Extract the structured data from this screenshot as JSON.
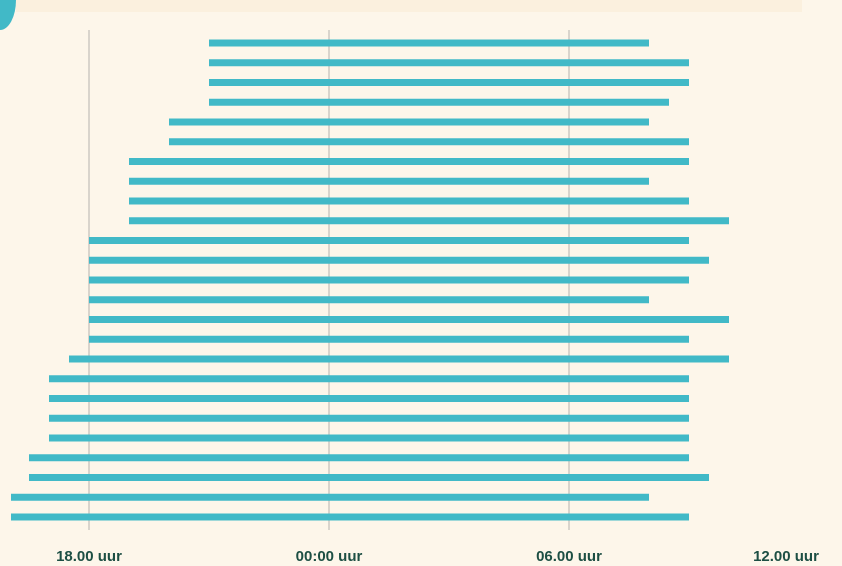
{
  "colors": {
    "background": "#fdf6ea",
    "bar": "#41b9c7",
    "gridline": "#d9d4cc",
    "tick_text": "#1d4f44",
    "accent": "#41b9c7"
  },
  "chart_data": {
    "type": "bar",
    "orientation": "horizontal-range",
    "x_unit": "hours relative to midnight",
    "xlim": [
      -18.0,
      12.6
    ],
    "ticks": [
      {
        "value": -6,
        "label": "18.00 uur"
      },
      {
        "value": 0,
        "label": "00:00 uur"
      },
      {
        "value": 6,
        "label": "06.00 uur"
      },
      {
        "value": 12,
        "label": "12.00 uur"
      }
    ],
    "grid": true,
    "bars": [
      {
        "start": -3.0,
        "end": 8.0
      },
      {
        "start": -3.0,
        "end": 9.0
      },
      {
        "start": -3.0,
        "end": 9.0
      },
      {
        "start": -3.0,
        "end": 8.5
      },
      {
        "start": -4.0,
        "end": 8.0
      },
      {
        "start": -4.0,
        "end": 9.0
      },
      {
        "start": -5.0,
        "end": 9.0
      },
      {
        "start": -5.0,
        "end": 8.0
      },
      {
        "start": -5.0,
        "end": 9.0
      },
      {
        "start": -5.0,
        "end": 10.0
      },
      {
        "start": -6.0,
        "end": 9.0
      },
      {
        "start": -6.0,
        "end": 9.5
      },
      {
        "start": -6.0,
        "end": 9.0
      },
      {
        "start": -6.0,
        "end": 8.0
      },
      {
        "start": -6.0,
        "end": 10.0
      },
      {
        "start": -6.0,
        "end": 9.0
      },
      {
        "start": -6.5,
        "end": 10.0
      },
      {
        "start": -7.0,
        "end": 9.0
      },
      {
        "start": -7.0,
        "end": 9.0
      },
      {
        "start": -7.0,
        "end": 9.0
      },
      {
        "start": -7.0,
        "end": 9.0
      },
      {
        "start": -7.5,
        "end": 9.0
      },
      {
        "start": -7.5,
        "end": 9.5
      },
      {
        "start": -8.0,
        "end": 8.0
      },
      {
        "start": -8.0,
        "end": 9.0
      }
    ]
  }
}
